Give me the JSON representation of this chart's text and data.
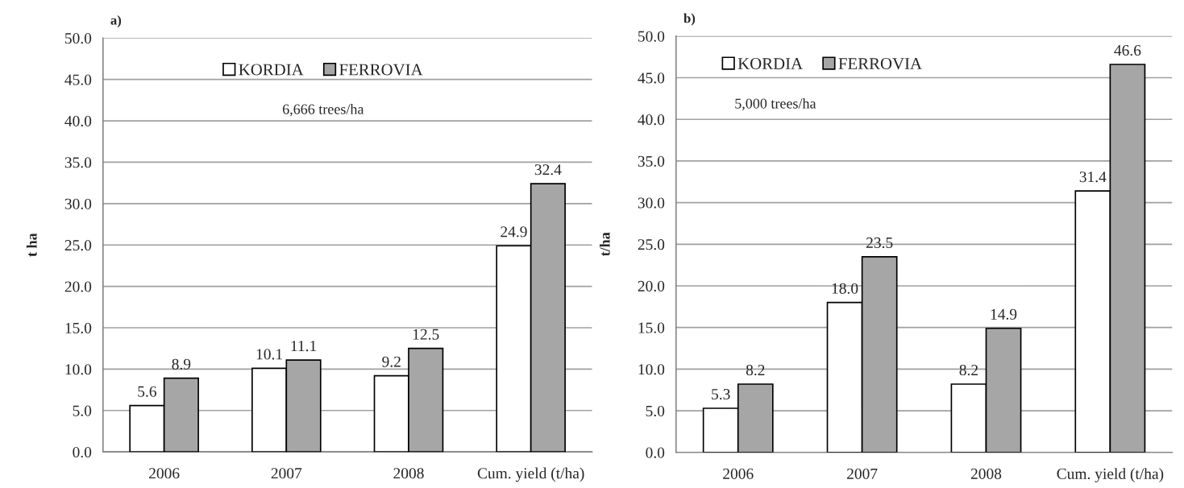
{
  "chart_data": [
    {
      "type": "bar",
      "title": "a)",
      "ylabel": "t ha",
      "categories": [
        "2006",
        "2007",
        "2008",
        "Cum. yield (t/ha)"
      ],
      "series": [
        {
          "name": "KORDIA",
          "color": "#ffffff",
          "values": [
            5.6,
            10.1,
            9.2,
            24.9
          ],
          "value_labels": [
            "5.6",
            "10.1",
            "9.2",
            "24.9"
          ]
        },
        {
          "name": "FERROVIA",
          "color": "#a6a6a6",
          "values": [
            8.9,
            11.1,
            12.5,
            32.4
          ],
          "value_labels": [
            "8.9",
            "11.1",
            "12.5",
            "32.4"
          ]
        }
      ],
      "ylim": [
        0,
        50
      ],
      "yticks": [
        {
          "value": 0,
          "label": "0.0"
        },
        {
          "value": 5,
          "label": "5.0"
        },
        {
          "value": 10,
          "label": "10.0"
        },
        {
          "value": 15,
          "label": "15.0"
        },
        {
          "value": 20,
          "label": "20.0"
        },
        {
          "value": 25,
          "label": "25.0"
        },
        {
          "value": 30,
          "label": "30.0"
        },
        {
          "value": 35,
          "label": "35.0"
        },
        {
          "value": 40,
          "label": "40.0"
        },
        {
          "value": 45,
          "label": "45.0"
        },
        {
          "value": 50,
          "label": "50.0"
        }
      ],
      "grid": "y",
      "legend": "top",
      "annotations": [
        "6,666 trees/ha"
      ]
    },
    {
      "type": "bar",
      "title": "b)",
      "ylabel": "t/ha",
      "categories": [
        "2006",
        "2007",
        "2008",
        "Cum. yield (t/ha)"
      ],
      "series": [
        {
          "name": "KORDIA",
          "color": "#ffffff",
          "values": [
            5.3,
            18.0,
            8.2,
            31.4
          ],
          "value_labels": [
            "5.3",
            "18.0",
            "8.2",
            "31.4"
          ]
        },
        {
          "name": "FERROVIA",
          "color": "#a6a6a6",
          "values": [
            8.2,
            23.5,
            14.9,
            46.6
          ],
          "value_labels": [
            "8.2",
            "23.5",
            "14.9",
            "46.6"
          ]
        }
      ],
      "ylim": [
        0,
        50
      ],
      "yticks": [
        {
          "value": 0,
          "label": "0.0"
        },
        {
          "value": 5,
          "label": "5.0"
        },
        {
          "value": 10,
          "label": "10.0"
        },
        {
          "value": 15,
          "label": "15.0"
        },
        {
          "value": 20,
          "label": "20.0"
        },
        {
          "value": 25,
          "label": "25.0"
        },
        {
          "value": 30,
          "label": "30.0"
        },
        {
          "value": 35,
          "label": "35.0"
        },
        {
          "value": 40,
          "label": "40.0"
        },
        {
          "value": 45,
          "label": "45.0"
        },
        {
          "value": 50,
          "label": "50.0"
        }
      ],
      "grid": "y",
      "legend": "top left",
      "annotations": [
        "5,000 trees/ha"
      ]
    }
  ]
}
